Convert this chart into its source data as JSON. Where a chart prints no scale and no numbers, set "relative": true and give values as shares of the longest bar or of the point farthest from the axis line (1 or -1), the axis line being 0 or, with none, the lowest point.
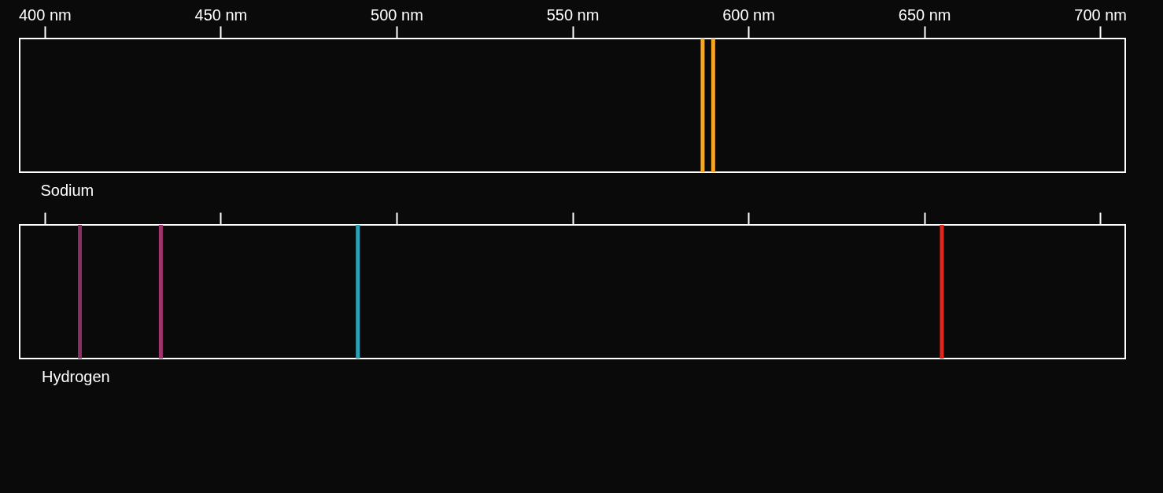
{
  "chart_data": [
    {
      "type": "bar",
      "title": "Sodium",
      "relative": true,
      "x": [
        587,
        590
      ],
      "values": [
        1,
        1
      ],
      "colors": [
        "#f6a623",
        "#f6a623"
      ],
      "xlim": [
        394,
        706
      ],
      "xticks": [
        {
          "value": 400,
          "label": "400 nm"
        },
        {
          "value": 450,
          "label": "450 nm"
        },
        {
          "value": 500,
          "label": "500 nm"
        },
        {
          "value": 550,
          "label": "550 nm"
        },
        {
          "value": 600,
          "label": "600 nm"
        },
        {
          "value": 650,
          "label": "650 nm"
        },
        {
          "value": 700,
          "label": "700 nm"
        }
      ]
    },
    {
      "type": "bar",
      "title": "Hydrogen",
      "relative": true,
      "x": [
        410,
        433,
        489,
        655
      ],
      "values": [
        1,
        1,
        1,
        1
      ],
      "colors": [
        "#8a2f63",
        "#a3336e",
        "#2aa3b8",
        "#e3261c"
      ],
      "xlim": [
        394,
        706
      ],
      "tick_labels": false,
      "xticks": [
        {
          "value": 400,
          "label": null
        },
        {
          "value": 450,
          "label": null
        },
        {
          "value": 500,
          "label": null
        },
        {
          "value": 550,
          "label": null
        },
        {
          "value": 600,
          "label": null
        },
        {
          "value": 650,
          "label": null
        },
        {
          "value": 700,
          "label": null
        }
      ]
    }
  ]
}
